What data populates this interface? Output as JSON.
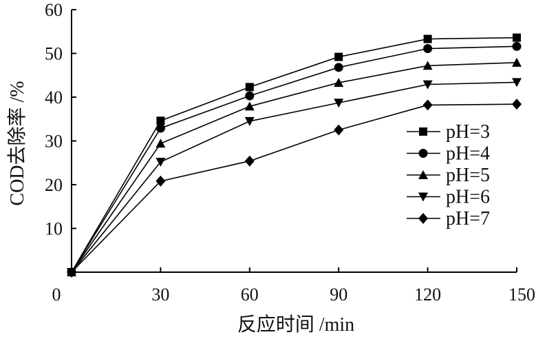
{
  "chart_data": {
    "type": "line",
    "title": "",
    "xlabel": "反应时间 /min",
    "ylabel": "COD去除率 /%",
    "x": [
      0,
      30,
      60,
      90,
      120,
      150
    ],
    "x_ticks": [
      0,
      30,
      60,
      90,
      120,
      150
    ],
    "y_ticks": [
      10,
      20,
      30,
      40,
      50,
      60
    ],
    "xlim": [
      0,
      150
    ],
    "ylim": [
      0,
      60
    ],
    "grid": false,
    "legend_position": "bottom-right",
    "series": [
      {
        "name": "pH=3",
        "marker": "square",
        "values": [
          0,
          34.6,
          42.3,
          49.2,
          53.3,
          53.6
        ]
      },
      {
        "name": "pH=4",
        "marker": "circle",
        "values": [
          0,
          32.9,
          40.3,
          46.8,
          51.1,
          51.6
        ]
      },
      {
        "name": "pH=5",
        "marker": "triangle-up",
        "values": [
          0,
          29.4,
          37.9,
          43.3,
          47.2,
          47.9
        ]
      },
      {
        "name": "pH=6",
        "marker": "triangle-down",
        "values": [
          0,
          25.2,
          34.5,
          38.7,
          42.9,
          43.4
        ]
      },
      {
        "name": "pH=7",
        "marker": "diamond",
        "values": [
          0,
          20.8,
          25.4,
          32.5,
          38.2,
          38.4
        ]
      }
    ]
  }
}
